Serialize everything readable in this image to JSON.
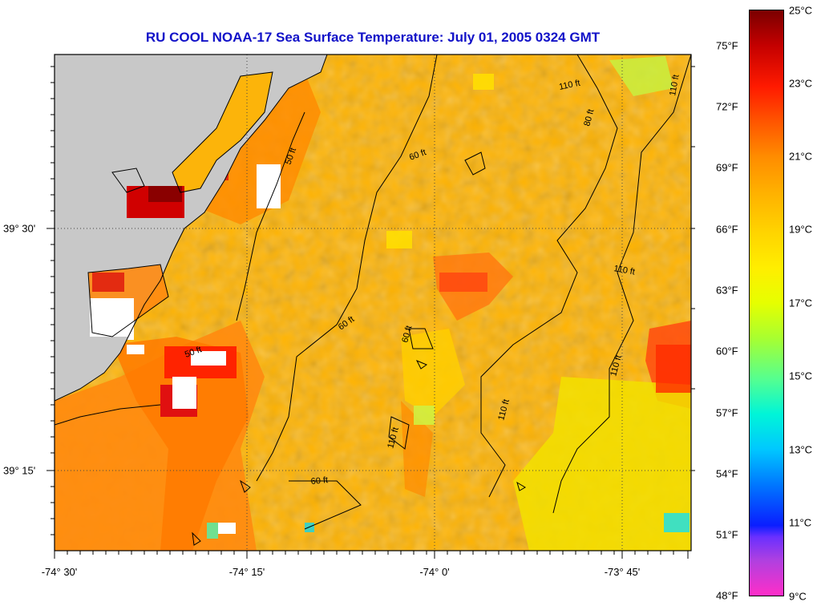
{
  "title": "RU COOL  NOAA-17  Sea Surface Temperature:  July 01, 2005 0324 GMT",
  "axes": {
    "lon_labels": [
      "-74° 30'",
      "-74° 15'",
      "-74° 0'",
      "-73° 45'"
    ],
    "lat_labels": [
      "39° 30'",
      "39° 15'"
    ]
  },
  "contour_labels": [
    "50 ft",
    "60 ft",
    "110 ft",
    "80 ft"
  ],
  "colorbar": {
    "fahrenheit_labels": [
      "75°F",
      "72°F",
      "69°F",
      "66°F",
      "63°F",
      "60°F",
      "57°F",
      "54°F",
      "51°F",
      "48°F"
    ],
    "celsius_labels": [
      "25°C",
      "23°C",
      "21°C",
      "19°C",
      "17°C",
      "15°C",
      "13°C",
      "11°C",
      "9°C"
    ]
  },
  "colors": {
    "title": "#1212c8",
    "land": "#c8c8c8",
    "sea_base": "#ffb300",
    "warm": "#ff7a00",
    "hot": "#d40000",
    "cool": "#e8f000"
  }
}
